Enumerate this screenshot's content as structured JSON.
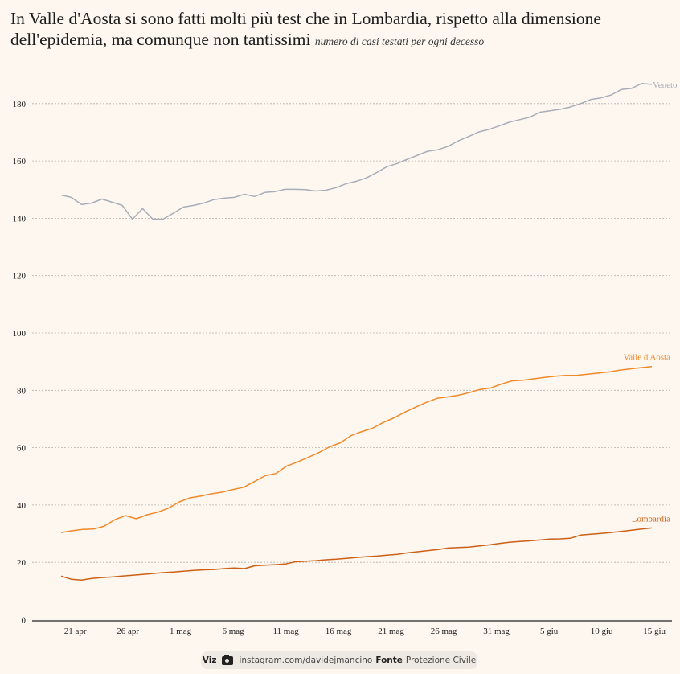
{
  "header": {
    "title": "In Valle d'Aosta si sono fatti molti più test che in Lombardia, rispetto alla dimensione dell'epidemia, ma comunque non tantissimi",
    "subtitle": "numero di casi testati per ogni decesso"
  },
  "footer": {
    "viz_label": "Viz",
    "viz_icon": "camera-icon",
    "viz_handle": "instagram.com/davidejmancino",
    "source_label": "Fonte",
    "source_value": "Protezione Civile"
  },
  "chart_data": {
    "type": "line",
    "title": "In Valle d'Aosta si sono fatti molti più test che in Lombardia, rispetto alla dimensione dell'epidemia, ma comunque non tantissimi",
    "subtitle": "numero di casi testati per ogni decesso",
    "xlabel": "",
    "ylabel": "",
    "ylim": [
      0,
      190
    ],
    "yticks": [
      0,
      20,
      40,
      60,
      80,
      100,
      120,
      140,
      160,
      180
    ],
    "grid": true,
    "x_start": "20 apr",
    "x_end": "14 giu",
    "x_range_days": [
      -1,
      55.8
    ],
    "xticks": [
      {
        "day": 1,
        "label": "21 apr"
      },
      {
        "day": 6,
        "label": "26 apr"
      },
      {
        "day": 11,
        "label": "1 mag"
      },
      {
        "day": 16,
        "label": "6 mag"
      },
      {
        "day": 21,
        "label": "11 mag"
      },
      {
        "day": 26,
        "label": "16 mag"
      },
      {
        "day": 31,
        "label": "21 mag"
      },
      {
        "day": 36,
        "label": "26 mag"
      },
      {
        "day": 41,
        "label": "31 mag"
      },
      {
        "day": 46,
        "label": "5 giu"
      },
      {
        "day": 51,
        "label": "10 giu"
      },
      {
        "day": 56,
        "label": "15 giu"
      }
    ],
    "legend": "direct-labels-at-line-ends",
    "series": [
      {
        "name": "Veneto",
        "color": "#a9adb8",
        "values": [
          148.1,
          147.3,
          144.8,
          145.3,
          146.7,
          145.6,
          144.5,
          139.7,
          143.4,
          139.7,
          139.7,
          141.7,
          143.9,
          144.5,
          145.3,
          146.5,
          147.0,
          147.3,
          148.4,
          147.6,
          149.0,
          149.3,
          150.1,
          150.1,
          150.0,
          149.5,
          149.8,
          150.7,
          152.1,
          152.9,
          154.1,
          156.0,
          158.0,
          159.1,
          160.6,
          162.0,
          163.4,
          163.9,
          165.1,
          167.0,
          168.5,
          170.1,
          171.0,
          172.2,
          173.5,
          174.4,
          175.2,
          177.0,
          177.5,
          178.0,
          178.8,
          180.0,
          181.4,
          182.0,
          183.0,
          184.9,
          185.3,
          187.0,
          186.7
        ]
      },
      {
        "name": "Valle d'Aosta",
        "color": "#f0892a",
        "values": [
          30.4,
          31.0,
          31.5,
          31.6,
          32.6,
          34.9,
          36.3,
          35.2,
          36.6,
          37.5,
          38.9,
          41.1,
          42.5,
          43.1,
          43.9,
          44.5,
          45.4,
          46.2,
          48.2,
          50.2,
          51.0,
          53.6,
          55.0,
          56.6,
          58.3,
          60.3,
          61.7,
          64.2,
          65.6,
          66.8,
          68.8,
          70.4,
          72.4,
          74.1,
          75.8,
          77.2,
          77.7,
          78.3,
          79.2,
          80.3,
          80.8,
          82.2,
          83.3,
          83.5,
          84.0,
          84.5,
          84.9,
          85.2,
          85.2,
          85.6,
          86.0,
          86.4,
          87.0,
          87.5,
          87.9,
          88.3
        ]
      },
      {
        "name": "Lombardia",
        "color": "#cc5f14",
        "values": [
          15.2,
          14.1,
          13.8,
          14.4,
          14.7,
          14.9,
          15.2,
          15.5,
          15.8,
          16.1,
          16.4,
          16.6,
          16.9,
          17.2,
          17.4,
          17.5,
          17.8,
          18.0,
          17.8,
          18.8,
          19.0,
          19.2,
          19.4,
          20.2,
          20.4,
          20.6,
          20.9,
          21.1,
          21.4,
          21.7,
          22.0,
          22.2,
          22.5,
          22.8,
          23.3,
          23.7,
          24.1,
          24.5,
          25.0,
          25.2,
          25.3,
          25.7,
          26.1,
          26.6,
          27.0,
          27.3,
          27.5,
          27.8,
          28.1,
          28.2,
          28.4,
          29.5,
          29.8,
          30.1,
          30.4,
          30.8,
          31.2,
          31.6,
          32.0
        ]
      }
    ]
  }
}
